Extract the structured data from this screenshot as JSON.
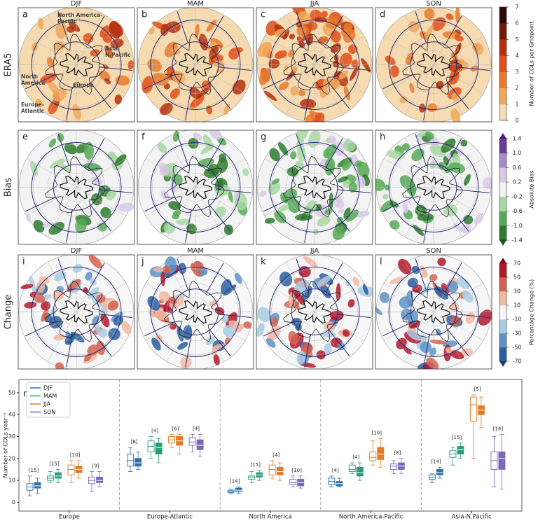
{
  "maps": {
    "rows": [
      {
        "label": "ERA5",
        "panels": [
          {
            "letter": "a",
            "title": "DJF"
          },
          {
            "letter": "b",
            "title": "MAM"
          },
          {
            "letter": "c",
            "title": "JJA"
          },
          {
            "letter": "d",
            "title": "SON"
          }
        ]
      },
      {
        "label": "Bias",
        "panels": [
          {
            "letter": "e"
          },
          {
            "letter": "f"
          },
          {
            "letter": "g"
          },
          {
            "letter": "h"
          }
        ]
      },
      {
        "label": "Change",
        "panels": [
          {
            "letter": "i",
            "title": "DJF"
          },
          {
            "letter": "j",
            "title": "MAM"
          },
          {
            "letter": "k",
            "title": "JJA"
          },
          {
            "letter": "l",
            "title": "SON"
          }
        ]
      }
    ],
    "regions": [
      [
        "North America-",
        "Pacific"
      ],
      [
        "Asia-",
        "N.Pacific"
      ],
      [
        "North",
        "America"
      ],
      [
        "Europe"
      ],
      [
        "Europe-",
        "Atlantic"
      ]
    ]
  },
  "colorbars": [
    {
      "label": "Number of COLs per Gridpoint",
      "lim": [
        0,
        7
      ],
      "ticks": [
        0,
        1,
        2,
        3,
        4,
        5,
        6,
        7
      ],
      "colors": [
        "#f6dab0",
        "#f1a75a",
        "#e97a2e",
        "#df4f1b",
        "#b5300f",
        "#741a0a",
        "#2c0a05"
      ],
      "extend": false
    },
    {
      "label": "Absolute Bias",
      "lim": [
        -1.4,
        1.4
      ],
      "ticks": [
        {
          "value": -1.4,
          "label": "-1.4"
        },
        {
          "value": -1.0,
          "label": "-1.0"
        },
        {
          "value": -0.6,
          "label": "-0.6"
        },
        {
          "value": -0.2,
          "label": "-0.2"
        },
        {
          "value": 0.2,
          "label": "0.2"
        },
        {
          "value": 0.6,
          "label": "0.6"
        },
        {
          "value": 1.0,
          "label": "1.0"
        },
        {
          "value": 1.4,
          "label": "1.4"
        }
      ],
      "colors": [
        "#2d7a2d",
        "#55a955",
        "#a8d8a2",
        "#f3f3f3",
        "#d9c9e8",
        "#a68bc8",
        "#6a3d9a"
      ],
      "extend": true,
      "low_color": "#1f5a1f",
      "high_color": "#4b1f78"
    },
    {
      "label": "Percentage Change (%)",
      "lim": [
        -70,
        70
      ],
      "ticks": [
        -70,
        -50,
        -30,
        -10,
        10,
        30,
        50,
        70
      ],
      "colors": [
        "#2b5fa0",
        "#5b92c5",
        "#a9cde4",
        "#f7f7f7",
        "#f1b9a1",
        "#d6604d",
        "#b2182b"
      ],
      "extend": true,
      "low_color": "#1d3f70",
      "high_color": "#7a0d1e"
    }
  ],
  "chart_data": {
    "type": "box",
    "panel_label": "m",
    "ylabel": "Number of COLs year⁻¹",
    "categories": [
      "Europe",
      "Europe-Atlantic",
      "North America",
      "North America-Pacific",
      "Asia-N.Pacific"
    ],
    "ylim": [
      -4,
      56
    ],
    "yticks": [
      0,
      10,
      20,
      30,
      40,
      50
    ],
    "series": [
      {
        "name": "DJF",
        "color": "#2f6fb0",
        "values": [
          [
            3,
            5.5,
            7,
            8.5,
            12
          ],
          [
            14,
            16.5,
            19,
            22,
            25
          ],
          [
            4,
            4.5,
            5,
            5.5,
            6
          ],
          [
            7,
            8,
            9.5,
            11,
            12
          ],
          [
            9,
            10.5,
            11.5,
            12.5,
            13
          ]
        ],
        "model_values": [
          [
            4,
            6.5,
            7.5,
            9,
            11
          ],
          [
            15,
            16.5,
            18,
            20,
            23
          ],
          [
            4,
            5,
            5.5,
            6.5,
            7
          ],
          [
            7,
            7.5,
            8.5,
            9.5,
            11
          ],
          [
            11,
            12.5,
            13.5,
            15,
            16
          ]
        ],
        "count_labels": [
          "[15]",
          "[6]",
          "[14]",
          "[4]",
          "[14]"
        ]
      },
      {
        "name": "MAM",
        "color": "#2a9d7a",
        "values": [
          [
            9,
            10,
            11,
            12,
            14
          ],
          [
            20,
            23,
            25.5,
            28,
            30
          ],
          [
            9,
            10.5,
            11.5,
            12,
            14
          ],
          [
            13,
            14,
            15,
            17,
            18
          ],
          [
            17,
            20.5,
            22,
            23.5,
            25
          ]
        ],
        "model_values": [
          [
            9,
            11,
            12,
            13.5,
            15
          ],
          [
            18,
            22,
            25,
            27,
            29
          ],
          [
            10,
            11.5,
            12.5,
            13.5,
            14.5
          ],
          [
            10,
            12,
            13.5,
            16,
            18
          ],
          [
            20,
            22,
            24,
            25.5,
            27
          ]
        ],
        "count_labels": [
          "[15]",
          "[4]",
          "[15]",
          "[4]",
          "[15]"
        ]
      },
      {
        "name": "JJA",
        "color": "#e07a26",
        "values": [
          [
            9,
            12.5,
            15,
            17,
            19
          ],
          [
            25,
            27,
            28.5,
            30,
            31
          ],
          [
            11,
            12.5,
            15,
            17,
            19
          ],
          [
            17,
            19,
            20.5,
            23,
            28
          ],
          [
            20,
            37,
            44.5,
            48,
            49
          ]
        ],
        "model_values": [
          [
            11,
            13.5,
            15,
            16.5,
            19
          ],
          [
            22,
            26,
            28,
            30,
            31
          ],
          [
            10,
            12.5,
            14,
            16,
            18
          ],
          [
            16,
            19.5,
            22,
            25,
            29
          ],
          [
            34,
            40,
            42,
            44,
            48
          ]
        ],
        "count_labels": [
          "[10]",
          "[6]",
          "[4]",
          "[10]",
          "[5]"
        ]
      },
      {
        "name": "SON",
        "color": "#7a67b8",
        "values": [
          [
            5,
            8.5,
            10,
            11.5,
            14
          ],
          [
            23,
            26,
            27.5,
            29.5,
            31
          ],
          [
            7,
            8,
            9,
            10.5,
            12
          ],
          [
            13,
            15,
            16.5,
            17.5,
            19
          ],
          [
            7,
            15,
            19,
            23,
            30
          ]
        ],
        "model_values": [
          [
            7,
            9,
            10,
            11.5,
            14
          ],
          [
            21,
            24,
            26,
            28.5,
            31
          ],
          [
            6.5,
            7.5,
            9,
            10.5,
            12
          ],
          [
            13,
            15,
            16.5,
            18,
            20
          ],
          [
            6,
            15,
            20,
            23,
            31
          ]
        ],
        "count_labels": [
          "[9]",
          "[4]",
          "[10]",
          "[8]",
          "[14]"
        ]
      }
    ]
  }
}
